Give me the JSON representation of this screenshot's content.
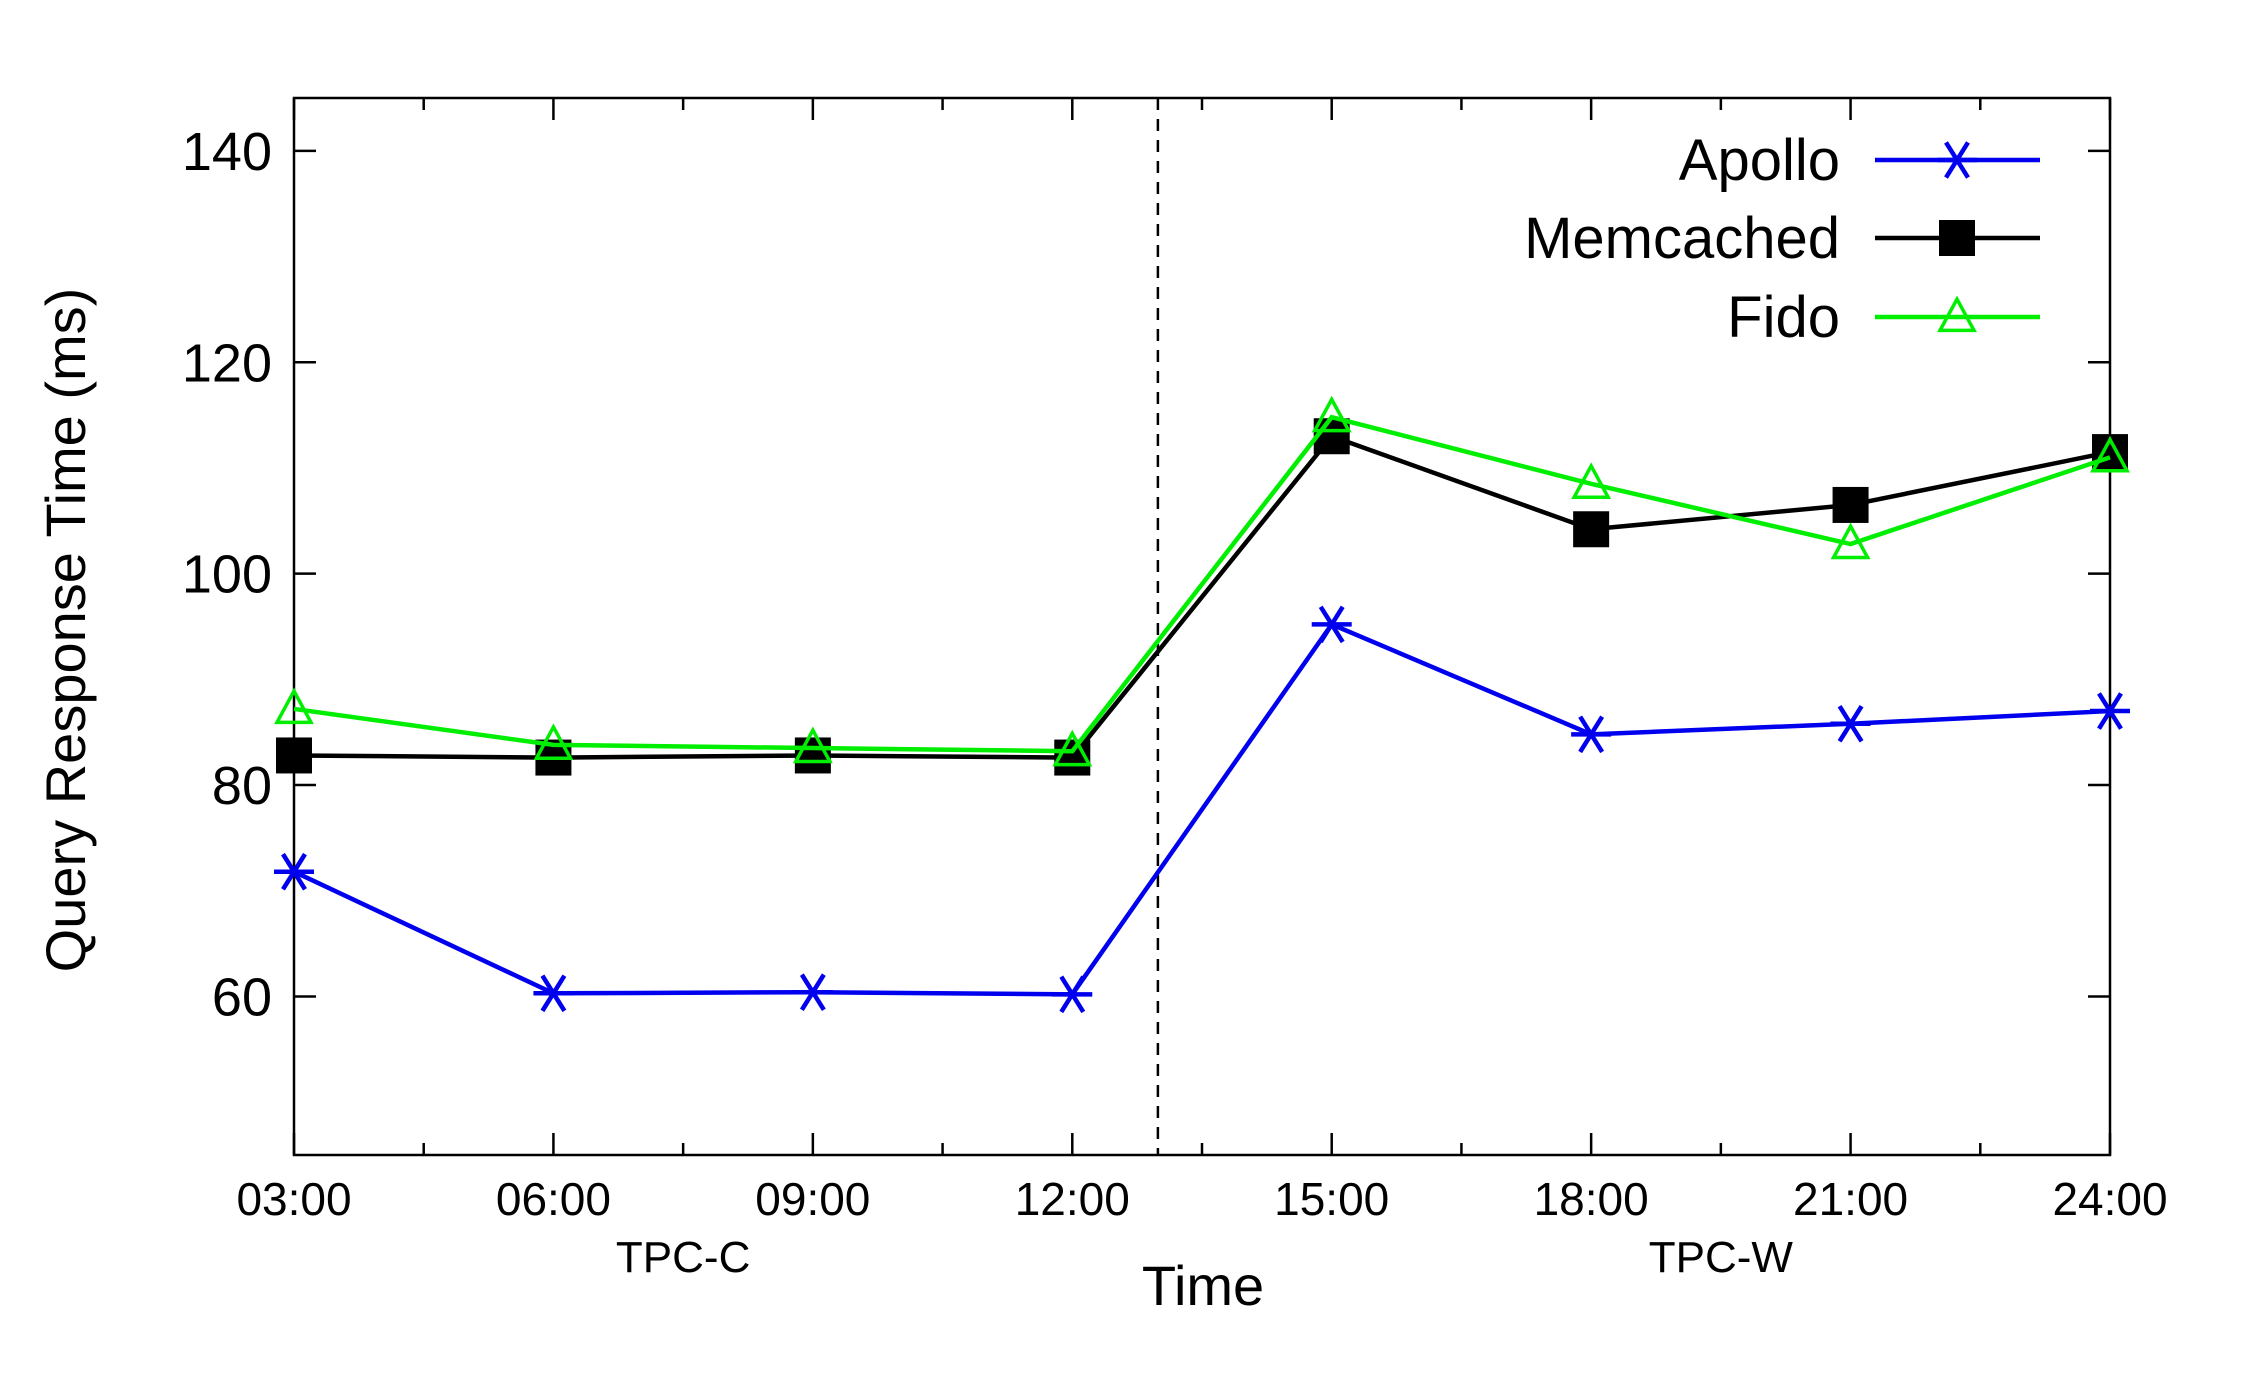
{
  "chart_data": {
    "type": "line",
    "xlabel": "Time",
    "ylabel": "Query Response Time (ms)",
    "ylim": [
      45,
      145
    ],
    "yticks": [
      60,
      80,
      100,
      120,
      140
    ],
    "x": [
      "03:00",
      "06:00",
      "09:00",
      "12:00",
      "15:00",
      "18:00",
      "21:00",
      "24:00"
    ],
    "grid": false,
    "legend_position": "top-right",
    "divider_between": [
      "12:00",
      "15:00"
    ],
    "group_labels": [
      {
        "label": "TPC-C",
        "center": "07:30"
      },
      {
        "label": "TPC-W",
        "center": "19:30"
      }
    ],
    "series": [
      {
        "name": "Apollo",
        "color": "#0000ee",
        "marker": "asterisk",
        "values": [
          71.8,
          60.3,
          60.4,
          60.2,
          95.2,
          84.8,
          85.8,
          87.0
        ]
      },
      {
        "name": "Memcached",
        "color": "#000000",
        "marker": "filled-square",
        "values": [
          82.8,
          82.6,
          82.8,
          82.6,
          113.0,
          104.2,
          106.5,
          111.5
        ]
      },
      {
        "name": "Fido",
        "color": "#00ee00",
        "marker": "open-triangle",
        "values": [
          87.2,
          83.8,
          83.5,
          83.2,
          114.8,
          108.5,
          102.8,
          111.0
        ]
      }
    ]
  }
}
